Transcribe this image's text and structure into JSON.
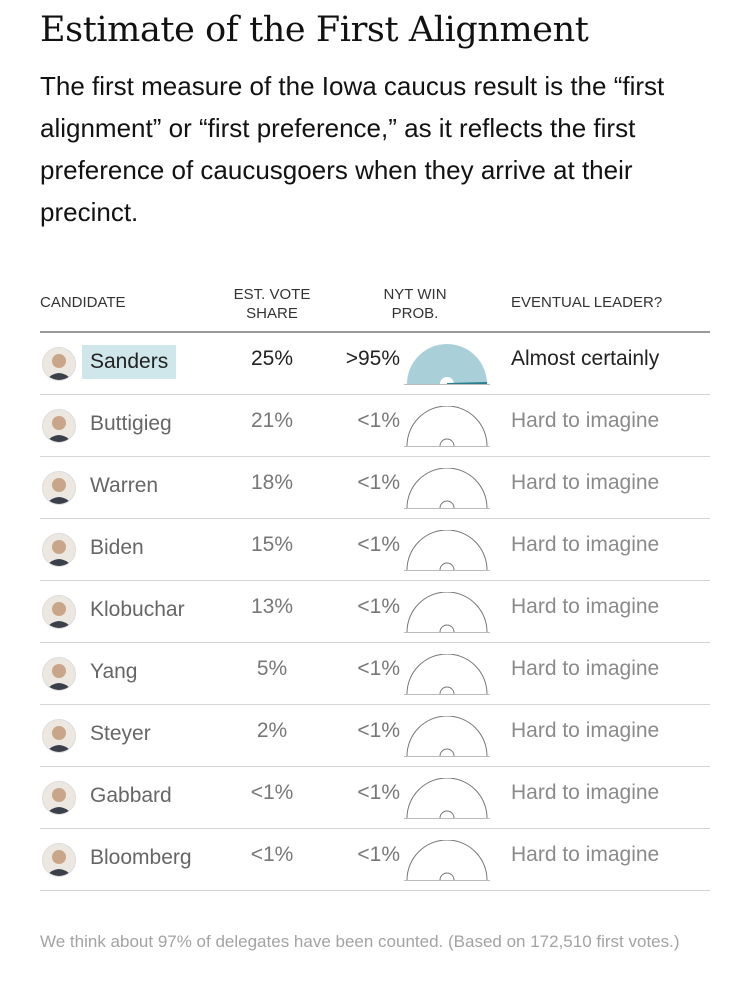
{
  "title": "Estimate of the First Alignment",
  "subtitle": "The first measure of the Iowa caucus result is the “first alignment” or “first preference,” as it reflects the first preference of caucusgoers when they arrive at their precinct.",
  "headers": {
    "candidate": "CANDIDATE",
    "share": "EST. VOTE SHARE",
    "prob": "NYT WIN PROB.",
    "leader": "EVENTUAL LEADER?"
  },
  "footnote": "We think about 97% of delegates have been counted. (Based on 172,510 first votes.)",
  "colors": {
    "gauge_fill": "#a9d0d8",
    "gauge_outline": "#777777",
    "highlight": "#cfe6ea",
    "needle": "#2a7f8e"
  },
  "chart_data": {
    "type": "table",
    "columns": [
      "CANDIDATE",
      "EST. VOTE SHARE",
      "NYT WIN PROB.",
      "EVENTUAL LEADER?"
    ],
    "rows": [
      {
        "candidate": "Sanders",
        "share": "25%",
        "prob": ">95%",
        "prob_value": 0.95,
        "leader": "Almost certainly",
        "highlight": true,
        "avatar": "sanders-avatar"
      },
      {
        "candidate": "Buttigieg",
        "share": "21%",
        "prob": "<1%",
        "prob_value": 0.0,
        "leader": "Hard to imagine",
        "highlight": false,
        "avatar": "buttigieg-avatar"
      },
      {
        "candidate": "Warren",
        "share": "18%",
        "prob": "<1%",
        "prob_value": 0.0,
        "leader": "Hard to imagine",
        "highlight": false,
        "avatar": "warren-avatar"
      },
      {
        "candidate": "Biden",
        "share": "15%",
        "prob": "<1%",
        "prob_value": 0.0,
        "leader": "Hard to imagine",
        "highlight": false,
        "avatar": "biden-avatar"
      },
      {
        "candidate": "Klobuchar",
        "share": "13%",
        "prob": "<1%",
        "prob_value": 0.0,
        "leader": "Hard to imagine",
        "highlight": false,
        "avatar": "klobuchar-avatar"
      },
      {
        "candidate": "Yang",
        "share": "5%",
        "prob": "<1%",
        "prob_value": 0.0,
        "leader": "Hard to imagine",
        "highlight": false,
        "avatar": "yang-avatar"
      },
      {
        "candidate": "Steyer",
        "share": "2%",
        "prob": "<1%",
        "prob_value": 0.0,
        "leader": "Hard to imagine",
        "highlight": false,
        "avatar": "steyer-avatar"
      },
      {
        "candidate": "Gabbard",
        "share": "<1%",
        "prob": "<1%",
        "prob_value": 0.0,
        "leader": "Hard to imagine",
        "highlight": false,
        "avatar": "gabbard-avatar"
      },
      {
        "candidate": "Bloomberg",
        "share": "<1%",
        "prob": "<1%",
        "prob_value": 0.0,
        "leader": "Hard to imagine",
        "highlight": false,
        "avatar": "bloomberg-avatar"
      }
    ]
  }
}
